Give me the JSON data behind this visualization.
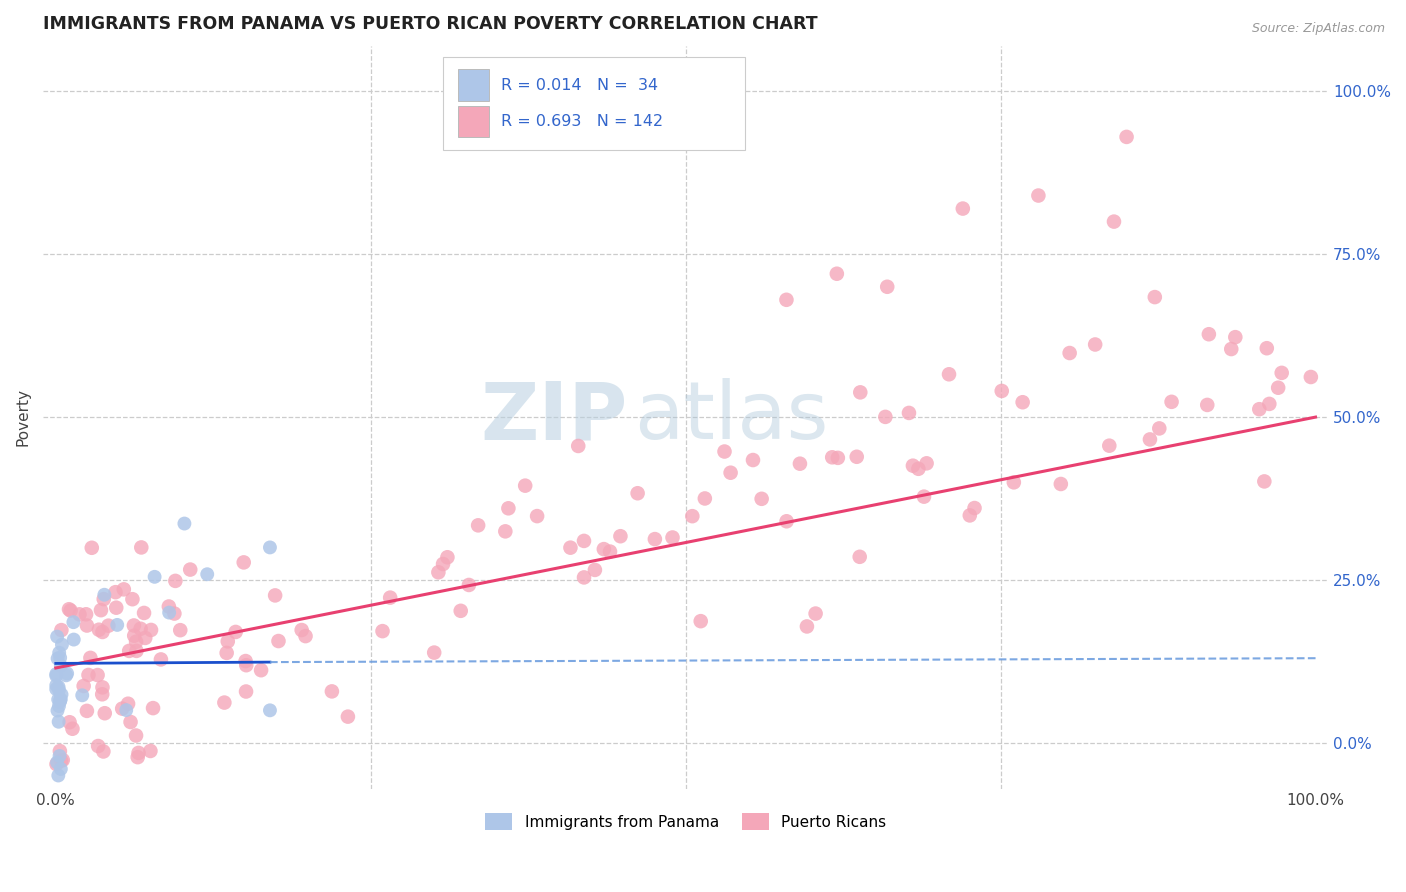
{
  "title": "IMMIGRANTS FROM PANAMA VS PUERTO RICAN POVERTY CORRELATION CHART",
  "source": "Source: ZipAtlas.com",
  "ylabel": "Poverty",
  "ytick_labels": [
    "0.0%",
    "25.0%",
    "50.0%",
    "75.0%",
    "100.0%"
  ],
  "ytick_values": [
    0.0,
    0.25,
    0.5,
    0.75,
    1.0
  ],
  "legend_entry1": "Immigrants from Panama",
  "legend_entry2": "Puerto Ricans",
  "r1": "0.014",
  "n1": "34",
  "r2": "0.693",
  "n2": "142",
  "color_panama": "#aec6e8",
  "color_pr": "#f4a7b9",
  "color_blue_line": "#1a4fcc",
  "color_pink_line": "#e84070",
  "color_dashed_blue": "#6699dd",
  "background_color": "#ffffff",
  "grid_color": "#cccccc",
  "axis_label_color": "#3366cc",
  "title_color": "#222222",
  "watermark_zip": "ZIP",
  "watermark_atlas": "atlas",
  "seed": 7
}
